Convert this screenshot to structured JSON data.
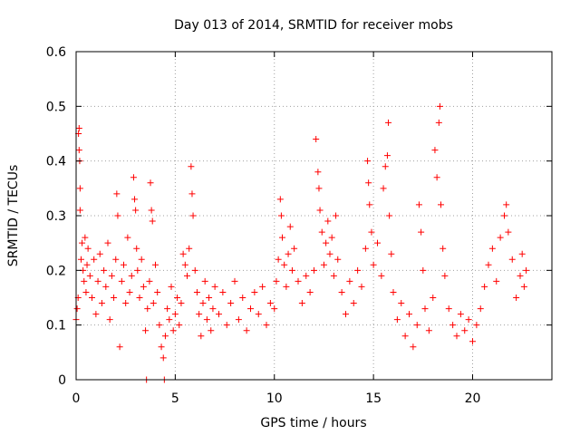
{
  "chart_data": {
    "type": "scatter",
    "title": "Day 013 of 2014, SRMTID for receiver mobs",
    "xlabel": "GPS time / hours",
    "ylabel": "SRMTID / TECUs",
    "xlim": [
      0,
      24
    ],
    "ylim": [
      0,
      0.6
    ],
    "xticks": [
      0,
      5,
      10,
      15,
      20
    ],
    "yticks": [
      0,
      0.1,
      0.2,
      0.3,
      0.4,
      0.5,
      0.6
    ],
    "xtick_labels": [
      "0",
      "5",
      "10",
      "15",
      "20"
    ],
    "ytick_labels": [
      "0",
      "0.1",
      "0.2",
      "0.3",
      "0.4",
      "0.5",
      "0.6"
    ],
    "grid": true,
    "marker": "+",
    "series": [
      {
        "name": "SRMTID",
        "color": "#ff0000",
        "points": [
          [
            0.0,
            0.11
          ],
          [
            0.05,
            0.13
          ],
          [
            0.1,
            0.15
          ],
          [
            0.12,
            0.45
          ],
          [
            0.15,
            0.46
          ],
          [
            0.15,
            0.42
          ],
          [
            0.18,
            0.4
          ],
          [
            0.2,
            0.35
          ],
          [
            0.2,
            0.31
          ],
          [
            0.25,
            0.22
          ],
          [
            0.3,
            0.25
          ],
          [
            0.35,
            0.2
          ],
          [
            0.4,
            0.18
          ],
          [
            0.45,
            0.26
          ],
          [
            0.5,
            0.16
          ],
          [
            0.55,
            0.21
          ],
          [
            0.6,
            0.24
          ],
          [
            0.7,
            0.19
          ],
          [
            0.8,
            0.15
          ],
          [
            0.9,
            0.22
          ],
          [
            1.0,
            0.12
          ],
          [
            1.1,
            0.18
          ],
          [
            1.2,
            0.23
          ],
          [
            1.3,
            0.14
          ],
          [
            1.4,
            0.2
          ],
          [
            1.5,
            0.17
          ],
          [
            1.6,
            0.25
          ],
          [
            1.7,
            0.11
          ],
          [
            1.8,
            0.19
          ],
          [
            1.9,
            0.15
          ],
          [
            2.0,
            0.22
          ],
          [
            2.05,
            0.34
          ],
          [
            2.1,
            0.3
          ],
          [
            2.2,
            0.06
          ],
          [
            2.3,
            0.18
          ],
          [
            2.4,
            0.21
          ],
          [
            2.5,
            0.14
          ],
          [
            2.6,
            0.26
          ],
          [
            2.7,
            0.16
          ],
          [
            2.8,
            0.19
          ],
          [
            2.9,
            0.37
          ],
          [
            2.95,
            0.33
          ],
          [
            3.0,
            0.31
          ],
          [
            3.05,
            0.24
          ],
          [
            3.1,
            0.2
          ],
          [
            3.2,
            0.15
          ],
          [
            3.3,
            0.22
          ],
          [
            3.4,
            0.17
          ],
          [
            3.5,
            0.09
          ],
          [
            3.55,
            0.0
          ],
          [
            3.6,
            0.13
          ],
          [
            3.7,
            0.18
          ],
          [
            3.75,
            0.36
          ],
          [
            3.8,
            0.31
          ],
          [
            3.85,
            0.29
          ],
          [
            3.9,
            0.14
          ],
          [
            4.0,
            0.21
          ],
          [
            4.1,
            0.16
          ],
          [
            4.2,
            0.1
          ],
          [
            4.3,
            0.06
          ],
          [
            4.4,
            0.04
          ],
          [
            4.45,
            0.0
          ],
          [
            4.5,
            0.08
          ],
          [
            4.6,
            0.13
          ],
          [
            4.7,
            0.11
          ],
          [
            4.8,
            0.17
          ],
          [
            4.9,
            0.09
          ],
          [
            5.0,
            0.12
          ],
          [
            5.1,
            0.15
          ],
          [
            5.2,
            0.1
          ],
          [
            5.3,
            0.14
          ],
          [
            5.4,
            0.23
          ],
          [
            5.5,
            0.21
          ],
          [
            5.6,
            0.19
          ],
          [
            5.7,
            0.24
          ],
          [
            5.8,
            0.39
          ],
          [
            5.85,
            0.34
          ],
          [
            5.9,
            0.3
          ],
          [
            6.0,
            0.2
          ],
          [
            6.1,
            0.16
          ],
          [
            6.2,
            0.12
          ],
          [
            6.3,
            0.08
          ],
          [
            6.4,
            0.14
          ],
          [
            6.5,
            0.18
          ],
          [
            6.6,
            0.11
          ],
          [
            6.7,
            0.15
          ],
          [
            6.8,
            0.09
          ],
          [
            6.9,
            0.13
          ],
          [
            7.0,
            0.17
          ],
          [
            7.2,
            0.12
          ],
          [
            7.4,
            0.16
          ],
          [
            7.6,
            0.1
          ],
          [
            7.8,
            0.14
          ],
          [
            8.0,
            0.18
          ],
          [
            8.2,
            0.11
          ],
          [
            8.4,
            0.15
          ],
          [
            8.6,
            0.09
          ],
          [
            8.8,
            0.13
          ],
          [
            9.0,
            0.16
          ],
          [
            9.2,
            0.12
          ],
          [
            9.4,
            0.17
          ],
          [
            9.6,
            0.1
          ],
          [
            9.8,
            0.14
          ],
          [
            10.0,
            0.13
          ],
          [
            10.1,
            0.18
          ],
          [
            10.2,
            0.22
          ],
          [
            10.3,
            0.33
          ],
          [
            10.35,
            0.3
          ],
          [
            10.4,
            0.26
          ],
          [
            10.5,
            0.21
          ],
          [
            10.6,
            0.17
          ],
          [
            10.7,
            0.23
          ],
          [
            10.8,
            0.28
          ],
          [
            10.9,
            0.2
          ],
          [
            11.0,
            0.24
          ],
          [
            11.2,
            0.18
          ],
          [
            11.4,
            0.14
          ],
          [
            11.6,
            0.19
          ],
          [
            11.8,
            0.16
          ],
          [
            12.0,
            0.2
          ],
          [
            12.1,
            0.44
          ],
          [
            12.2,
            0.38
          ],
          [
            12.25,
            0.35
          ],
          [
            12.3,
            0.31
          ],
          [
            12.4,
            0.27
          ],
          [
            12.5,
            0.21
          ],
          [
            12.6,
            0.25
          ],
          [
            12.7,
            0.29
          ],
          [
            12.8,
            0.23
          ],
          [
            12.9,
            0.26
          ],
          [
            13.0,
            0.19
          ],
          [
            13.1,
            0.3
          ],
          [
            13.2,
            0.22
          ],
          [
            13.4,
            0.16
          ],
          [
            13.6,
            0.12
          ],
          [
            13.8,
            0.18
          ],
          [
            14.0,
            0.14
          ],
          [
            14.2,
            0.2
          ],
          [
            14.4,
            0.17
          ],
          [
            14.6,
            0.24
          ],
          [
            14.7,
            0.4
          ],
          [
            14.75,
            0.36
          ],
          [
            14.8,
            0.32
          ],
          [
            14.9,
            0.27
          ],
          [
            15.0,
            0.21
          ],
          [
            15.2,
            0.25
          ],
          [
            15.4,
            0.19
          ],
          [
            15.5,
            0.35
          ],
          [
            15.6,
            0.39
          ],
          [
            15.7,
            0.41
          ],
          [
            15.75,
            0.47
          ],
          [
            15.8,
            0.3
          ],
          [
            15.9,
            0.23
          ],
          [
            16.0,
            0.16
          ],
          [
            16.2,
            0.11
          ],
          [
            16.4,
            0.14
          ],
          [
            16.6,
            0.08
          ],
          [
            16.8,
            0.12
          ],
          [
            17.0,
            0.06
          ],
          [
            17.2,
            0.1
          ],
          [
            17.3,
            0.32
          ],
          [
            17.4,
            0.27
          ],
          [
            17.5,
            0.2
          ],
          [
            17.6,
            0.13
          ],
          [
            17.8,
            0.09
          ],
          [
            18.0,
            0.15
          ],
          [
            18.1,
            0.42
          ],
          [
            18.2,
            0.37
          ],
          [
            18.3,
            0.47
          ],
          [
            18.35,
            0.5
          ],
          [
            18.4,
            0.32
          ],
          [
            18.5,
            0.24
          ],
          [
            18.6,
            0.19
          ],
          [
            18.8,
            0.13
          ],
          [
            19.0,
            0.1
          ],
          [
            19.2,
            0.08
          ],
          [
            19.4,
            0.12
          ],
          [
            19.6,
            0.09
          ],
          [
            19.8,
            0.11
          ],
          [
            20.0,
            0.07
          ],
          [
            20.2,
            0.1
          ],
          [
            20.4,
            0.13
          ],
          [
            20.6,
            0.17
          ],
          [
            20.8,
            0.21
          ],
          [
            21.0,
            0.24
          ],
          [
            21.2,
            0.18
          ],
          [
            21.4,
            0.26
          ],
          [
            21.6,
            0.3
          ],
          [
            21.7,
            0.32
          ],
          [
            21.8,
            0.27
          ],
          [
            22.0,
            0.22
          ],
          [
            22.2,
            0.15
          ],
          [
            22.4,
            0.19
          ],
          [
            22.5,
            0.23
          ],
          [
            22.6,
            0.17
          ],
          [
            22.7,
            0.2
          ]
        ]
      }
    ]
  }
}
